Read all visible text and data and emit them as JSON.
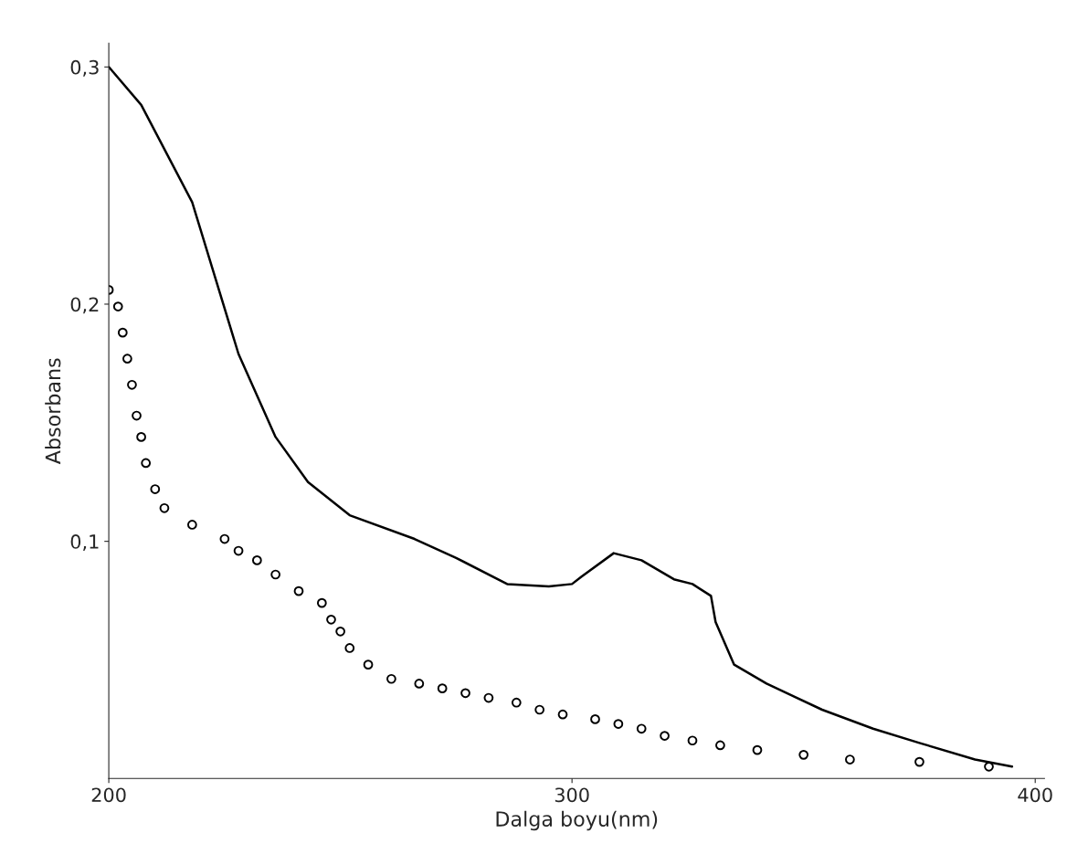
{
  "chart_data": {
    "type": "line",
    "xlabel": "Dalga boyu(nm)",
    "ylabel": "Absorbans",
    "xlim": [
      200,
      402
    ],
    "ylim": [
      0,
      0.31
    ],
    "xticks": [
      200,
      300,
      400
    ],
    "yticks": [
      {
        "value": 0.1,
        "label": "0,1"
      },
      {
        "value": 0.2,
        "label": "0,2"
      },
      {
        "value": 0.3,
        "label": "0,3"
      }
    ],
    "grid": false,
    "legend": false,
    "series": [
      {
        "color": "#000000",
        "line_style": "solid",
        "marker": "none",
        "x": [
          200,
          207,
          218,
          228,
          236,
          243,
          252,
          266,
          275,
          286,
          295,
          300,
          302,
          309,
          315,
          322,
          326,
          330,
          331,
          335,
          342,
          354,
          365,
          375,
          387,
          395
        ],
        "values": [
          0.3,
          0.284,
          0.243,
          0.179,
          0.144,
          0.125,
          0.111,
          0.101,
          0.093,
          0.082,
          0.081,
          0.082,
          0.085,
          0.095,
          0.092,
          0.084,
          0.082,
          0.077,
          0.066,
          0.048,
          0.04,
          0.029,
          0.021,
          0.015,
          0.008,
          0.005
        ]
      },
      {
        "type": "scatter",
        "color": "#000000",
        "marker": "circle",
        "x": [
          200,
          202,
          203,
          204,
          205,
          206,
          207,
          208,
          210,
          212,
          218,
          225,
          228,
          232,
          236,
          241,
          246,
          248,
          250,
          252,
          256,
          261,
          267,
          272,
          277,
          282,
          288,
          293,
          298,
          305,
          310,
          315,
          320,
          326,
          332,
          340,
          350,
          360,
          375,
          390
        ],
        "values": [
          0.206,
          0.199,
          0.188,
          0.177,
          0.166,
          0.153,
          0.144,
          0.133,
          0.122,
          0.114,
          0.107,
          0.101,
          0.096,
          0.092,
          0.086,
          0.079,
          0.074,
          0.067,
          0.062,
          0.055,
          0.048,
          0.042,
          0.04,
          0.038,
          0.036,
          0.034,
          0.032,
          0.029,
          0.027,
          0.025,
          0.023,
          0.021,
          0.018,
          0.016,
          0.014,
          0.012,
          0.01,
          0.008,
          0.007,
          0.005
        ]
      }
    ]
  }
}
